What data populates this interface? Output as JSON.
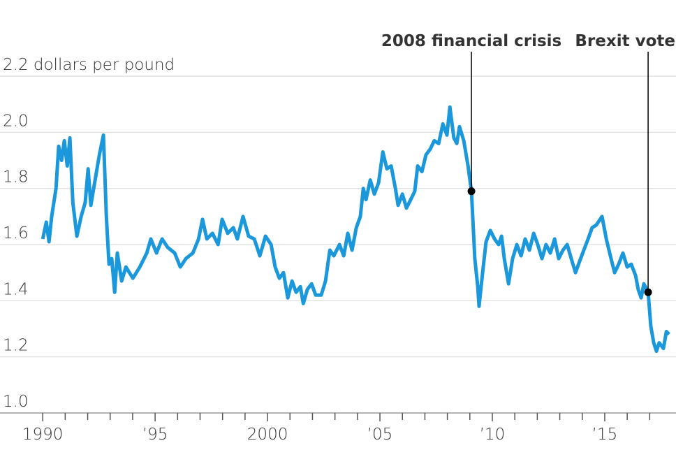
{
  "chart_data": {
    "type": "line",
    "color": "#1a98db",
    "grid": true,
    "xlim": [
      1988.1,
      2018.17
    ],
    "ylim": [
      1.0,
      2.2
    ],
    "yticks": [
      {
        "value": 1.0,
        "label": "1.0"
      },
      1.2,
      1.4,
      1.6,
      1.8,
      {
        "value": 2.0,
        "label": "2.0"
      },
      {
        "value": 2.2,
        "label": "2.2 dollars per pound"
      }
    ],
    "xticks": [
      {
        "value": 1990,
        "label": "1990"
      },
      {
        "value": 1995,
        "label": "’95"
      },
      {
        "value": 2000,
        "label": "2000"
      },
      {
        "value": 2005,
        "label": "’05"
      },
      {
        "value": 2010,
        "label": "’10"
      },
      {
        "value": 2015,
        "label": "’15"
      }
    ],
    "xminorticks": [
      1991,
      1992,
      1993,
      1994,
      1996,
      1997,
      1998,
      1999,
      2001,
      2002,
      2003,
      2004,
      2006,
      2007,
      2008,
      2009,
      2011,
      2012,
      2013,
      2014,
      2016,
      2017
    ],
    "annotations": [
      {
        "label": "2008 financial crisis",
        "x": 2009.07,
        "y": 1.79
      },
      {
        "label": "Brexit vote",
        "x": 2016.93,
        "y": 1.43
      }
    ],
    "x": [
      1990.0,
      1990.16,
      1990.28,
      1990.4,
      1990.59,
      1990.71,
      1990.84,
      1990.96,
      1991.09,
      1991.21,
      1991.34,
      1991.52,
      1991.71,
      1991.89,
      1992.02,
      1992.14,
      1992.33,
      1992.52,
      1992.7,
      1992.83,
      1992.95,
      1993.07,
      1993.2,
      1993.32,
      1993.51,
      1993.7,
      1994.01,
      1994.32,
      1994.63,
      1994.81,
      1995.06,
      1995.31,
      1995.56,
      1995.87,
      1996.12,
      1996.37,
      1996.68,
      1996.93,
      1997.11,
      1997.3,
      1997.55,
      1997.8,
      1997.98,
      1998.23,
      1998.48,
      1998.66,
      1998.91,
      1999.16,
      1999.41,
      1999.66,
      1999.91,
      2000.16,
      2000.34,
      2000.53,
      2000.71,
      2000.9,
      2001.09,
      2001.27,
      2001.46,
      2001.59,
      2001.77,
      2001.96,
      2002.14,
      2002.39,
      2002.58,
      2002.77,
      2002.95,
      2003.2,
      2003.39,
      2003.57,
      2003.76,
      2003.95,
      2004.13,
      2004.26,
      2004.38,
      2004.57,
      2004.75,
      2004.94,
      2005.13,
      2005.31,
      2005.5,
      2005.69,
      2005.81,
      2006.0,
      2006.18,
      2006.37,
      2006.55,
      2006.68,
      2006.87,
      2007.05,
      2007.24,
      2007.42,
      2007.61,
      2007.8,
      2007.98,
      2008.11,
      2008.29,
      2008.42,
      2008.54,
      2008.73,
      2008.92,
      2009.07,
      2009.22,
      2009.35,
      2009.41,
      2009.54,
      2009.72,
      2009.91,
      2010.1,
      2010.28,
      2010.41,
      2010.53,
      2010.72,
      2010.9,
      2011.09,
      2011.28,
      2011.46,
      2011.65,
      2011.84,
      2012.02,
      2012.21,
      2012.39,
      2012.58,
      2012.77,
      2012.95,
      2013.14,
      2013.33,
      2013.51,
      2013.7,
      2013.88,
      2014.07,
      2014.26,
      2014.44,
      2014.63,
      2014.88,
      2015.07,
      2015.25,
      2015.44,
      2015.62,
      2015.81,
      2016.0,
      2016.18,
      2016.37,
      2016.49,
      2016.62,
      2016.74,
      2016.93,
      2017.05,
      2017.18,
      2017.3,
      2017.42,
      2017.61,
      2017.74,
      2017.86
    ],
    "values": [
      1.62,
      1.68,
      1.61,
      1.7,
      1.8,
      1.95,
      1.9,
      1.97,
      1.88,
      1.98,
      1.75,
      1.63,
      1.7,
      1.75,
      1.87,
      1.74,
      1.83,
      1.92,
      1.99,
      1.7,
      1.53,
      1.55,
      1.43,
      1.57,
      1.47,
      1.52,
      1.48,
      1.52,
      1.57,
      1.62,
      1.57,
      1.62,
      1.59,
      1.57,
      1.52,
      1.55,
      1.57,
      1.62,
      1.69,
      1.62,
      1.64,
      1.6,
      1.69,
      1.64,
      1.66,
      1.62,
      1.7,
      1.63,
      1.62,
      1.56,
      1.63,
      1.6,
      1.52,
      1.48,
      1.5,
      1.41,
      1.47,
      1.43,
      1.45,
      1.39,
      1.44,
      1.46,
      1.42,
      1.42,
      1.47,
      1.58,
      1.56,
      1.6,
      1.56,
      1.64,
      1.58,
      1.66,
      1.7,
      1.8,
      1.76,
      1.83,
      1.78,
      1.82,
      1.93,
      1.87,
      1.88,
      1.8,
      1.74,
      1.78,
      1.73,
      1.76,
      1.79,
      1.88,
      1.86,
      1.92,
      1.94,
      1.97,
      1.96,
      2.03,
      1.99,
      2.09,
      1.98,
      1.96,
      2.02,
      1.97,
      1.88,
      1.79,
      1.55,
      1.45,
      1.38,
      1.48,
      1.61,
      1.65,
      1.62,
      1.6,
      1.63,
      1.55,
      1.46,
      1.55,
      1.6,
      1.56,
      1.62,
      1.58,
      1.64,
      1.6,
      1.55,
      1.6,
      1.57,
      1.62,
      1.55,
      1.58,
      1.6,
      1.55,
      1.5,
      1.54,
      1.58,
      1.62,
      1.66,
      1.67,
      1.7,
      1.62,
      1.56,
      1.5,
      1.53,
      1.57,
      1.52,
      1.53,
      1.49,
      1.44,
      1.41,
      1.46,
      1.43,
      1.31,
      1.25,
      1.22,
      1.25,
      1.23,
      1.29,
      1.28
    ]
  }
}
